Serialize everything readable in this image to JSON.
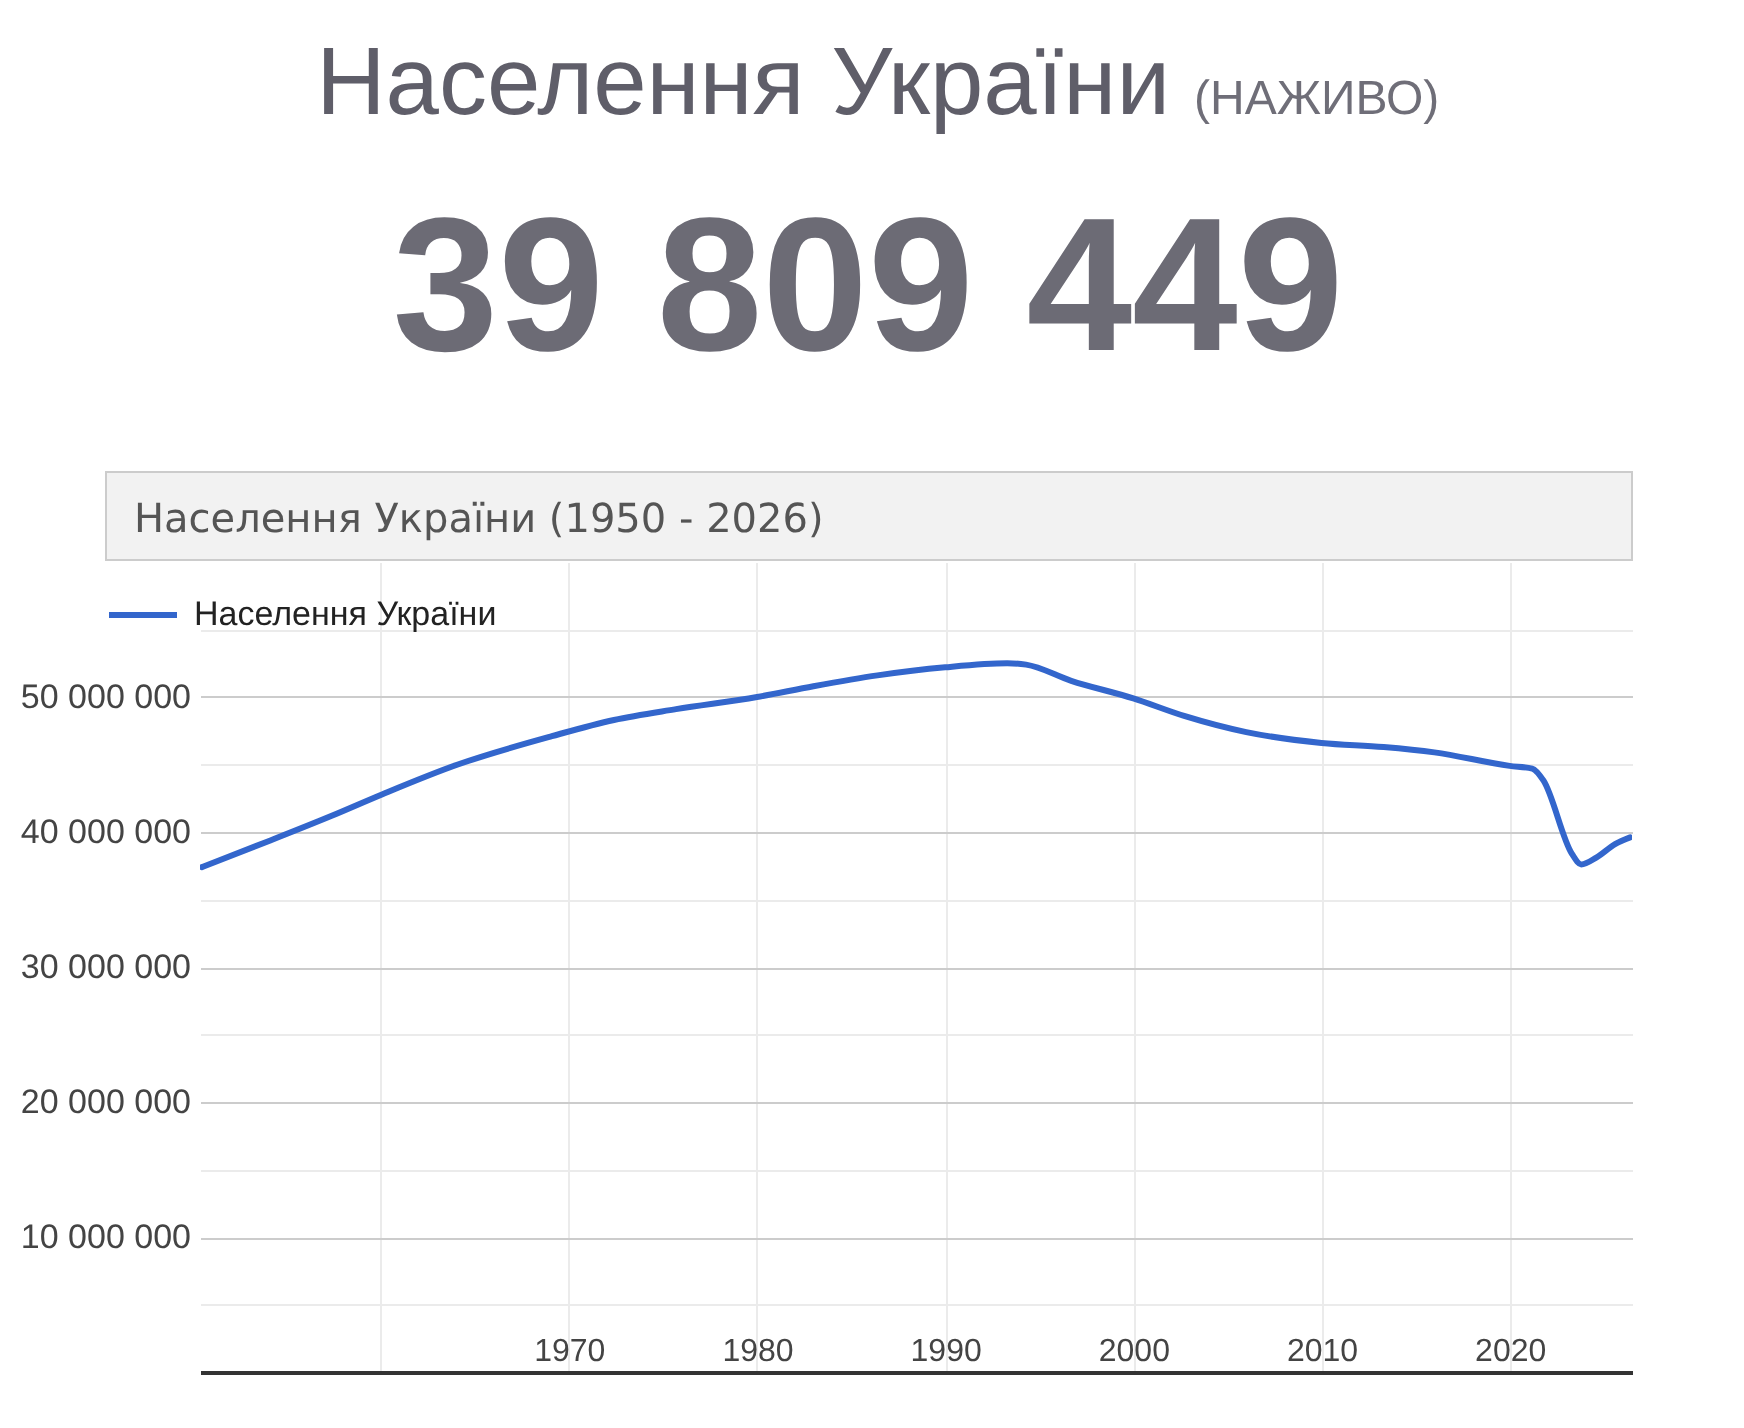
{
  "chart_data": [
    {
      "type": "other",
      "title": "Населення України",
      "subtitle": "(НАЖИВО)",
      "annotations": [
        "39 809 449"
      ]
    },
    {
      "type": "line",
      "title": "Населення України (1950 - 2026)",
      "x": [
        1950.5,
        1954,
        1957.4,
        1960.1,
        1964.1,
        1969.1,
        1972.4,
        1975.7,
        1980,
        1983,
        1986.4,
        1990,
        1993.3,
        1994.3,
        1996.7,
        2000,
        2002.7,
        2006,
        2010,
        2013.3,
        2016,
        2020,
        2021.2,
        2021.8,
        2023.3,
        2023.8,
        2024.6,
        2025.6,
        2026.4
      ],
      "series": [
        {
          "name": "Населення України",
          "color": "#3366cc",
          "values": [
            37400000,
            39300000,
            41200000,
            42800000,
            45000000,
            47100000,
            48300000,
            49100000,
            50000000,
            50800000,
            51600000,
            52200000,
            52500000,
            52400000,
            51200000,
            49900000,
            48600000,
            47400000,
            46600000,
            46300000,
            45900000,
            44900000,
            44700000,
            43800000,
            38400000,
            37600000,
            38100000,
            39100000,
            39600000
          ]
        }
      ],
      "xlim": [
        1950.4,
        2026.5
      ],
      "xticks": [
        {
          "value": 1960,
          "label": null
        },
        1970,
        1980,
        1990,
        2000,
        2010,
        2020
      ],
      "ylim": [
        0,
        60000000
      ],
      "yticks": [
        {
          "value": 5000000,
          "label": null
        },
        {
          "value": 10000000,
          "label": "10 000 000"
        },
        {
          "value": 15000000,
          "label": null
        },
        {
          "value": 20000000,
          "label": "20 000 000"
        },
        {
          "value": 25000000,
          "label": null
        },
        {
          "value": 30000000,
          "label": "30 000 000"
        },
        {
          "value": 35000000,
          "label": null
        },
        {
          "value": 40000000,
          "label": "40 000 000"
        },
        {
          "value": 45000000,
          "label": null
        },
        {
          "value": 50000000,
          "label": "50 000 000"
        },
        {
          "value": 55000000,
          "label": null
        }
      ],
      "grid": true,
      "legend": "top left",
      "line_style": "solid"
    }
  ]
}
